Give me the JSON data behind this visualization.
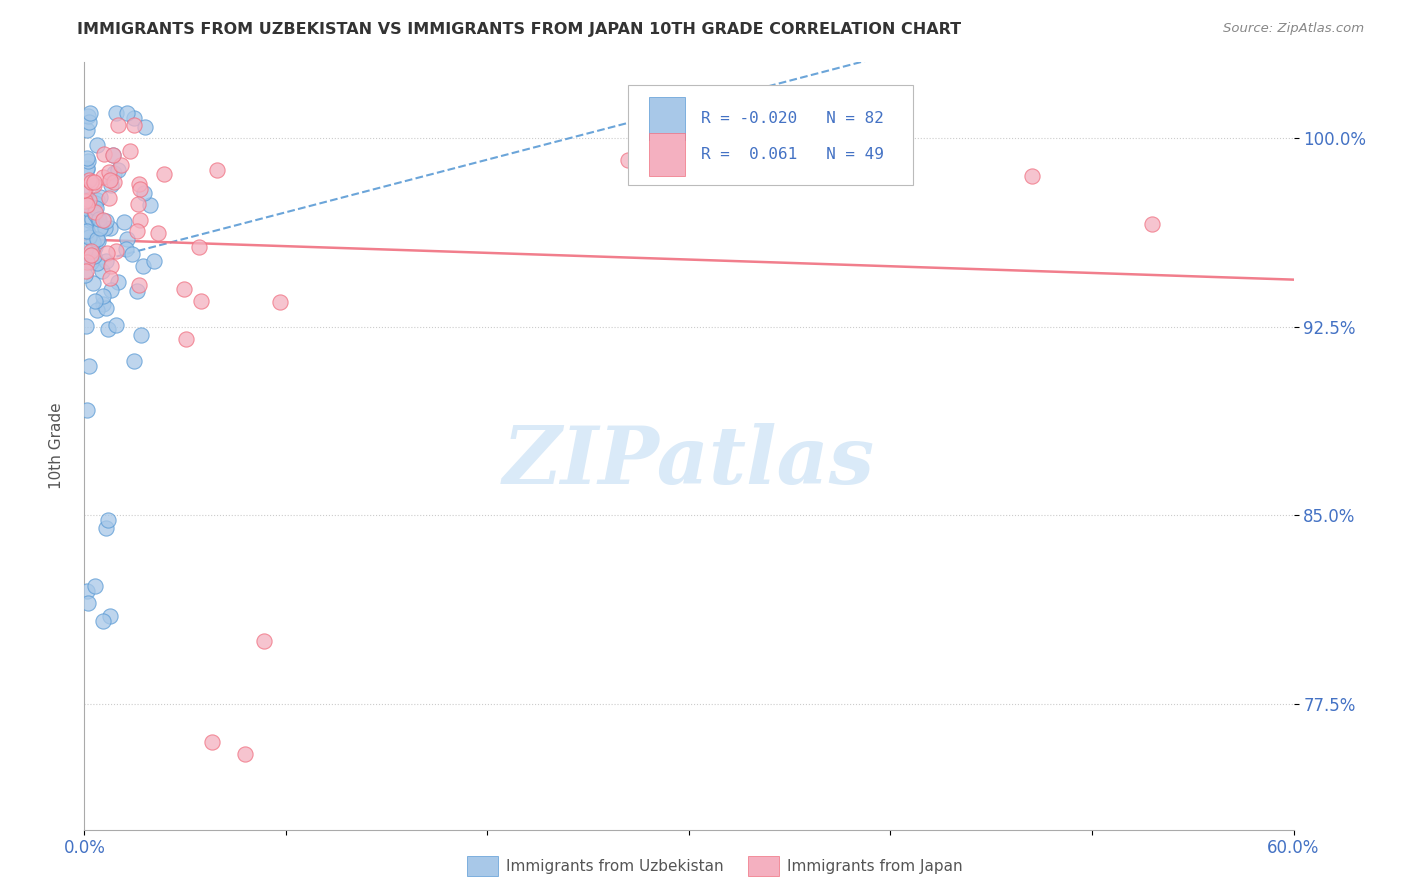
{
  "title": "IMMIGRANTS FROM UZBEKISTAN VS IMMIGRANTS FROM JAPAN 10TH GRADE CORRELATION CHART",
  "source": "Source: ZipAtlas.com",
  "ylabel": "10th Grade",
  "yticks": [
    0.775,
    0.85,
    0.925,
    1.0
  ],
  "ytick_labels": [
    "77.5%",
    "85.0%",
    "92.5%",
    "100.0%"
  ],
  "xlim": [
    0.0,
    0.6
  ],
  "ylim": [
    0.725,
    1.03
  ],
  "legend_r_uzbekistan": "-0.020",
  "legend_n_uzbekistan": "82",
  "legend_r_japan": "0.061",
  "legend_n_japan": "49",
  "color_uzbekistan": "#a8c8e8",
  "color_japan": "#f4b0c0",
  "color_uzbekistan_line": "#5b9bd5",
  "color_japan_line": "#f07080",
  "watermark_color": "#daeaf8",
  "grid_color": "#cccccc",
  "tick_color": "#4472c4",
  "title_color": "#333333",
  "source_color": "#888888",
  "ylabel_color": "#555555",
  "bottom_label_color": "#555555"
}
